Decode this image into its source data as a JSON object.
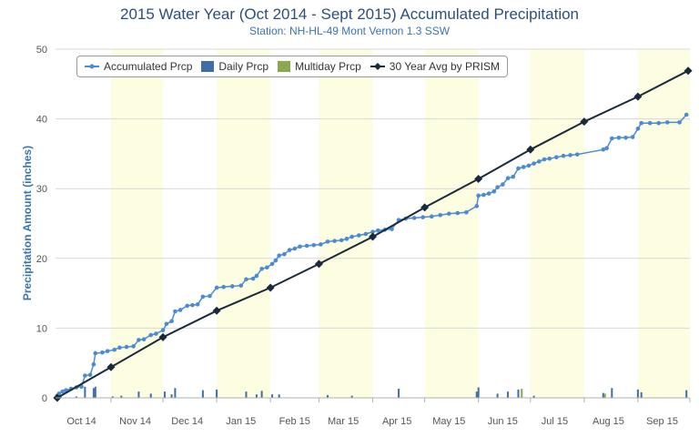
{
  "chart_data": {
    "type": "line",
    "title": "2015 Water Year (Oct 2014 - Sept 2015) Accumulated Precipitation",
    "subtitle": "Station: NH-HL-49 Mont Vernon 1.3 SSW",
    "ylabel": "Precipitation Amount (inches)",
    "xlabel": "",
    "ylim": [
      0,
      50
    ],
    "xlim": [
      "2014-09-30",
      "2015-10-01"
    ],
    "grid": true,
    "legend_position": "top-left",
    "x_ticks": [
      {
        "label": "Oct 14",
        "date": "2014-10-15"
      },
      {
        "label": "Nov 14",
        "date": "2014-11-15"
      },
      {
        "label": "Dec 14",
        "date": "2014-12-15"
      },
      {
        "label": "Jan 15",
        "date": "2015-01-15"
      },
      {
        "label": "Feb 15",
        "date": "2015-02-15"
      },
      {
        "label": "Mar 15",
        "date": "2015-03-15"
      },
      {
        "label": "Apr 15",
        "date": "2015-04-15"
      },
      {
        "label": "May 15",
        "date": "2015-05-15"
      },
      {
        "label": "Jun 15",
        "date": "2015-06-15"
      },
      {
        "label": "Jul 15",
        "date": "2015-07-15"
      },
      {
        "label": "Aug 15",
        "date": "2015-08-15"
      },
      {
        "label": "Sep 15",
        "date": "2015-09-15"
      }
    ],
    "y_ticks": [
      0,
      10,
      20,
      30,
      40,
      50
    ],
    "shaded_bands": [
      {
        "start": "2014-11-01",
        "end": "2014-12-01"
      },
      {
        "start": "2015-01-01",
        "end": "2015-02-01"
      },
      {
        "start": "2015-03-01",
        "end": "2015-04-01"
      },
      {
        "start": "2015-05-01",
        "end": "2015-06-01"
      },
      {
        "start": "2015-07-01",
        "end": "2015-08-01"
      },
      {
        "start": "2015-09-01",
        "end": "2015-10-01"
      }
    ],
    "series": [
      {
        "name": "Accumulated Prcp",
        "kind": "line-dots",
        "color": "#4a8bd1",
        "points": [
          {
            "date": "2014-10-01",
            "value": 0.3
          },
          {
            "date": "2014-10-02",
            "value": 0.6
          },
          {
            "date": "2014-10-04",
            "value": 0.9
          },
          {
            "date": "2014-10-06",
            "value": 1.1
          },
          {
            "date": "2014-10-09",
            "value": 1.3
          },
          {
            "date": "2014-10-12",
            "value": 1.5
          },
          {
            "date": "2014-10-15",
            "value": 1.6
          },
          {
            "date": "2014-10-17",
            "value": 3.2
          },
          {
            "date": "2014-10-20",
            "value": 3.3
          },
          {
            "date": "2014-10-22",
            "value": 4.8
          },
          {
            "date": "2014-10-23",
            "value": 6.4
          },
          {
            "date": "2014-10-27",
            "value": 6.5
          },
          {
            "date": "2014-10-30",
            "value": 6.7
          },
          {
            "date": "2014-11-03",
            "value": 6.9
          },
          {
            "date": "2014-11-06",
            "value": 7.2
          },
          {
            "date": "2014-11-10",
            "value": 7.3
          },
          {
            "date": "2014-11-14",
            "value": 7.4
          },
          {
            "date": "2014-11-17",
            "value": 8.3
          },
          {
            "date": "2014-11-20",
            "value": 8.4
          },
          {
            "date": "2014-11-24",
            "value": 9.0
          },
          {
            "date": "2014-11-27",
            "value": 9.2
          },
          {
            "date": "2014-12-01",
            "value": 9.7
          },
          {
            "date": "2014-12-03",
            "value": 10.6
          },
          {
            "date": "2014-12-06",
            "value": 11.0
          },
          {
            "date": "2014-12-08",
            "value": 12.4
          },
          {
            "date": "2014-12-11",
            "value": 12.6
          },
          {
            "date": "2014-12-15",
            "value": 13.2
          },
          {
            "date": "2014-12-18",
            "value": 13.3
          },
          {
            "date": "2014-12-21",
            "value": 13.4
          },
          {
            "date": "2014-12-24",
            "value": 14.5
          },
          {
            "date": "2014-12-28",
            "value": 14.6
          },
          {
            "date": "2015-01-01",
            "value": 15.8
          },
          {
            "date": "2015-01-05",
            "value": 15.9
          },
          {
            "date": "2015-01-10",
            "value": 16.0
          },
          {
            "date": "2015-01-15",
            "value": 16.1
          },
          {
            "date": "2015-01-18",
            "value": 17.0
          },
          {
            "date": "2015-01-22",
            "value": 17.1
          },
          {
            "date": "2015-01-24",
            "value": 17.5
          },
          {
            "date": "2015-01-27",
            "value": 18.5
          },
          {
            "date": "2015-01-30",
            "value": 18.7
          },
          {
            "date": "2015-02-02",
            "value": 19.2
          },
          {
            "date": "2015-02-04",
            "value": 19.7
          },
          {
            "date": "2015-02-06",
            "value": 20.4
          },
          {
            "date": "2015-02-09",
            "value": 20.6
          },
          {
            "date": "2015-02-12",
            "value": 21.2
          },
          {
            "date": "2015-02-15",
            "value": 21.4
          },
          {
            "date": "2015-02-18",
            "value": 21.7
          },
          {
            "date": "2015-02-22",
            "value": 21.8
          },
          {
            "date": "2015-02-26",
            "value": 21.9
          },
          {
            "date": "2015-03-02",
            "value": 22.0
          },
          {
            "date": "2015-03-06",
            "value": 22.4
          },
          {
            "date": "2015-03-10",
            "value": 22.5
          },
          {
            "date": "2015-03-14",
            "value": 22.6
          },
          {
            "date": "2015-03-17",
            "value": 22.8
          },
          {
            "date": "2015-03-20",
            "value": 23.1
          },
          {
            "date": "2015-03-24",
            "value": 23.3
          },
          {
            "date": "2015-03-28",
            "value": 23.5
          },
          {
            "date": "2015-04-01",
            "value": 23.8
          },
          {
            "date": "2015-04-04",
            "value": 24.0
          },
          {
            "date": "2015-04-08",
            "value": 24.1
          },
          {
            "date": "2015-04-12",
            "value": 24.2
          },
          {
            "date": "2015-04-16",
            "value": 25.5
          },
          {
            "date": "2015-04-20",
            "value": 25.7
          },
          {
            "date": "2015-04-25",
            "value": 25.8
          },
          {
            "date": "2015-04-30",
            "value": 25.9
          },
          {
            "date": "2015-05-05",
            "value": 26.0
          },
          {
            "date": "2015-05-10",
            "value": 26.2
          },
          {
            "date": "2015-05-15",
            "value": 26.4
          },
          {
            "date": "2015-05-20",
            "value": 26.5
          },
          {
            "date": "2015-05-25",
            "value": 26.6
          },
          {
            "date": "2015-05-31",
            "value": 27.5
          },
          {
            "date": "2015-06-01",
            "value": 29.0
          },
          {
            "date": "2015-06-04",
            "value": 29.1
          },
          {
            "date": "2015-06-07",
            "value": 29.3
          },
          {
            "date": "2015-06-10",
            "value": 29.6
          },
          {
            "date": "2015-06-12",
            "value": 30.2
          },
          {
            "date": "2015-06-15",
            "value": 30.6
          },
          {
            "date": "2015-06-18",
            "value": 31.5
          },
          {
            "date": "2015-06-21",
            "value": 31.7
          },
          {
            "date": "2015-06-24",
            "value": 32.9
          },
          {
            "date": "2015-06-27",
            "value": 33.1
          },
          {
            "date": "2015-06-30",
            "value": 33.3
          },
          {
            "date": "2015-07-03",
            "value": 33.6
          },
          {
            "date": "2015-07-06",
            "value": 33.9
          },
          {
            "date": "2015-07-09",
            "value": 34.2
          },
          {
            "date": "2015-07-12",
            "value": 34.3
          },
          {
            "date": "2015-07-16",
            "value": 34.5
          },
          {
            "date": "2015-07-20",
            "value": 34.7
          },
          {
            "date": "2015-07-24",
            "value": 34.8
          },
          {
            "date": "2015-07-28",
            "value": 34.9
          },
          {
            "date": "2015-08-12",
            "value": 35.6
          },
          {
            "date": "2015-08-14",
            "value": 35.8
          },
          {
            "date": "2015-08-17",
            "value": 37.2
          },
          {
            "date": "2015-08-21",
            "value": 37.3
          },
          {
            "date": "2015-08-25",
            "value": 37.3
          },
          {
            "date": "2015-08-29",
            "value": 37.4
          },
          {
            "date": "2015-09-01",
            "value": 38.6
          },
          {
            "date": "2015-09-03",
            "value": 39.4
          },
          {
            "date": "2015-09-08",
            "value": 39.4
          },
          {
            "date": "2015-09-13",
            "value": 39.4
          },
          {
            "date": "2015-09-18",
            "value": 39.5
          },
          {
            "date": "2015-09-25",
            "value": 39.5
          },
          {
            "date": "2015-09-29",
            "value": 40.6
          }
        ]
      },
      {
        "name": "Daily Prcp",
        "kind": "bar",
        "color": "#3f6ea6",
        "points": [
          {
            "date": "2014-10-03",
            "value": 0.3
          },
          {
            "date": "2014-10-12",
            "value": 0.2
          },
          {
            "date": "2014-10-17",
            "value": 1.6
          },
          {
            "date": "2014-10-22",
            "value": 1.4
          },
          {
            "date": "2014-10-23",
            "value": 1.6
          },
          {
            "date": "2014-11-02",
            "value": 0.2
          },
          {
            "date": "2014-11-07",
            "value": 0.3
          },
          {
            "date": "2014-11-17",
            "value": 0.9
          },
          {
            "date": "2014-11-24",
            "value": 0.6
          },
          {
            "date": "2014-12-02",
            "value": 0.9
          },
          {
            "date": "2014-12-06",
            "value": 0.5
          },
          {
            "date": "2014-12-08",
            "value": 1.4
          },
          {
            "date": "2014-12-24",
            "value": 1.1
          },
          {
            "date": "2015-01-01",
            "value": 1.2
          },
          {
            "date": "2015-01-18",
            "value": 0.9
          },
          {
            "date": "2015-01-24",
            "value": 0.5
          },
          {
            "date": "2015-01-27",
            "value": 1.0
          },
          {
            "date": "2015-02-02",
            "value": 0.5
          },
          {
            "date": "2015-02-06",
            "value": 0.5
          },
          {
            "date": "2015-03-06",
            "value": 0.4
          },
          {
            "date": "2015-03-20",
            "value": 0.3
          },
          {
            "date": "2015-04-16",
            "value": 1.3
          },
          {
            "date": "2015-05-31",
            "value": 0.9
          },
          {
            "date": "2015-06-01",
            "value": 1.5
          },
          {
            "date": "2015-06-12",
            "value": 0.6
          },
          {
            "date": "2015-06-18",
            "value": 0.9
          },
          {
            "date": "2015-06-24",
            "value": 1.2
          },
          {
            "date": "2015-07-03",
            "value": 0.3
          },
          {
            "date": "2015-08-12",
            "value": 0.7
          },
          {
            "date": "2015-08-17",
            "value": 1.4
          },
          {
            "date": "2015-09-01",
            "value": 1.2
          },
          {
            "date": "2015-09-03",
            "value": 0.8
          },
          {
            "date": "2015-09-29",
            "value": 1.1
          }
        ]
      },
      {
        "name": "Multiday Prcp",
        "kind": "bar",
        "color": "#8aa84e",
        "points": [
          {
            "date": "2015-06-26",
            "value": 1.3
          },
          {
            "date": "2015-08-13",
            "value": 0.6
          }
        ]
      },
      {
        "name": "30 Year Avg by PRISM",
        "kind": "line-diamonds",
        "color": "#1b2a3a",
        "points": [
          {
            "date": "2014-10-01",
            "value": 0.0
          },
          {
            "date": "2014-11-01",
            "value": 4.4
          },
          {
            "date": "2014-12-01",
            "value": 8.7
          },
          {
            "date": "2015-01-01",
            "value": 12.5
          },
          {
            "date": "2015-02-01",
            "value": 15.8
          },
          {
            "date": "2015-03-01",
            "value": 19.2
          },
          {
            "date": "2015-04-01",
            "value": 23.1
          },
          {
            "date": "2015-05-01",
            "value": 27.3
          },
          {
            "date": "2015-06-01",
            "value": 31.4
          },
          {
            "date": "2015-07-01",
            "value": 35.6
          },
          {
            "date": "2015-08-01",
            "value": 39.6
          },
          {
            "date": "2015-09-01",
            "value": 43.2
          },
          {
            "date": "2015-09-30",
            "value": 46.9
          }
        ]
      }
    ]
  }
}
